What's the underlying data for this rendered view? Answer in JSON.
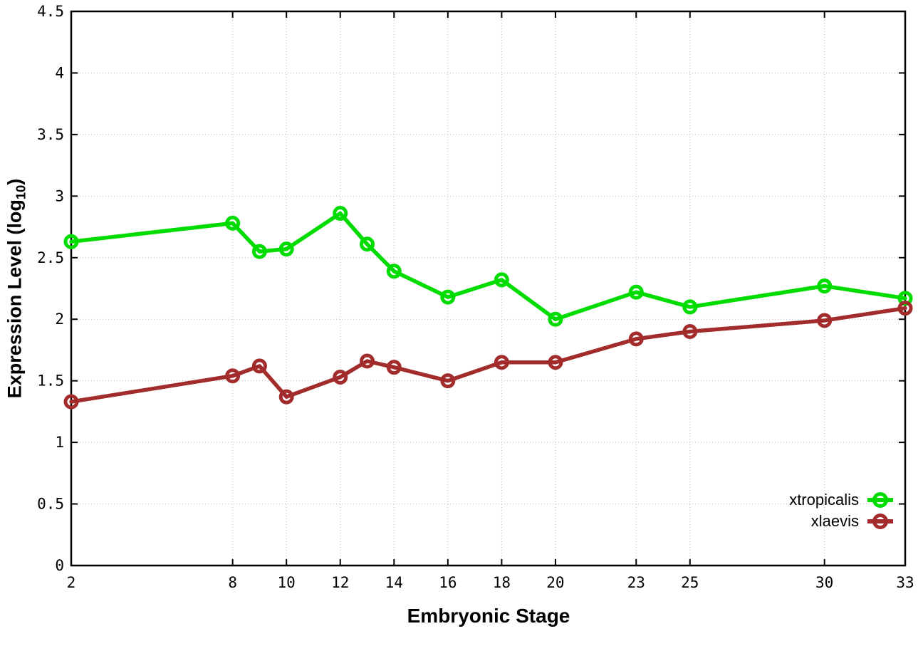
{
  "figure": {
    "background": "#ffffff",
    "border_color": "#000000",
    "grid_color": "#b8b8b8"
  },
  "chart_data": {
    "type": "line",
    "title": "",
    "xlabel": "Embryonic Stage",
    "ylabel": "Expression Level (log10)",
    "ylabel_parts": {
      "pre": "Expression Level (log",
      "sub": "10",
      "post": ")"
    },
    "x": [
      2,
      8,
      9,
      10,
      12,
      13,
      14,
      16,
      18,
      20,
      23,
      25,
      30,
      33
    ],
    "series": [
      {
        "name": "xtropicalis",
        "color": "#00dc00",
        "marker": "open-circle",
        "values": [
          2.63,
          2.78,
          2.55,
          2.57,
          2.86,
          2.61,
          2.39,
          2.18,
          2.32,
          2.0,
          2.22,
          2.1,
          2.27,
          2.17
        ]
      },
      {
        "name": "xlaevis",
        "color": "#a22c2c",
        "marker": "open-circle",
        "values": [
          1.33,
          1.54,
          1.62,
          1.37,
          1.53,
          1.66,
          1.61,
          1.5,
          1.65,
          1.65,
          1.84,
          1.9,
          1.99,
          2.09
        ]
      }
    ],
    "xlim": [
      2,
      33
    ],
    "ylim": [
      0,
      4.5
    ],
    "xticks": [
      2,
      8,
      10,
      12,
      14,
      16,
      18,
      20,
      23,
      25,
      30,
      33
    ],
    "xtick_labels": [
      "2",
      "8",
      "10",
      "12",
      "14",
      "16",
      "18",
      "20",
      "23",
      "25",
      "30",
      "33"
    ],
    "yticks": [
      0,
      0.5,
      1,
      1.5,
      2,
      2.5,
      3,
      3.5,
      4,
      4.5
    ],
    "ytick_labels": [
      "0",
      "0.5",
      "1",
      "1.5",
      "2",
      "2.5",
      "3",
      "3.5",
      "4",
      "4.5"
    ],
    "grid": "dotted",
    "legend_position": "bottom-right"
  }
}
